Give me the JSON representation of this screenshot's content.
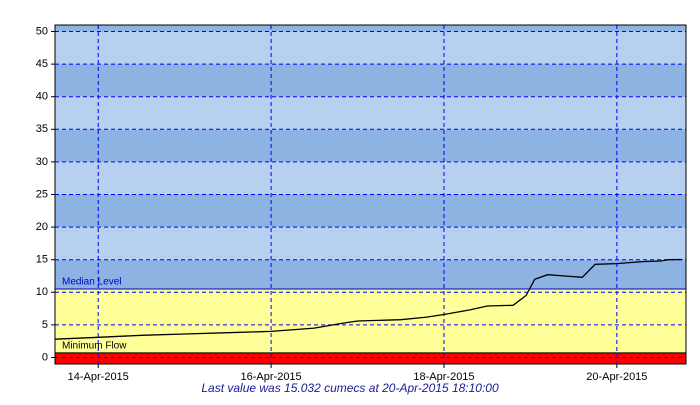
{
  "chart_data": {
    "type": "line",
    "x": [
      13.5,
      14.0,
      14.5,
      15.0,
      15.5,
      16.0,
      16.5,
      16.8,
      17.0,
      17.5,
      17.8,
      18.0,
      18.3,
      18.5,
      18.8,
      18.95,
      19.05,
      19.2,
      19.4,
      19.6,
      19.75,
      20.0,
      20.3,
      20.5,
      20.6,
      20.76
    ],
    "values": [
      2.8,
      3.1,
      3.4,
      3.6,
      3.8,
      4.0,
      4.5,
      5.2,
      5.6,
      5.8,
      6.2,
      6.6,
      7.3,
      7.9,
      8.0,
      9.5,
      12.0,
      12.7,
      12.5,
      12.3,
      14.3,
      14.4,
      14.7,
      14.8,
      15.0,
      15.032
    ],
    "color": "#000000",
    "xlim": [
      13.5,
      20.8
    ],
    "xticks": [
      {
        "value": 14,
        "label": "14-Apr-2015"
      },
      {
        "value": 16,
        "label": "16-Apr-2015"
      },
      {
        "value": 18,
        "label": "18-Apr-2015"
      },
      {
        "value": 20,
        "label": "20-Apr-2015"
      }
    ],
    "ylim": [
      -1,
      51
    ],
    "yticks": [
      0,
      5,
      10,
      15,
      20,
      25,
      30,
      35,
      40,
      45,
      50
    ],
    "grid": true,
    "reference_lines": [
      {
        "label": "Median Level",
        "value": 10.5,
        "color": "#0000cc",
        "fill_below": "#ffff99"
      },
      {
        "label": "Minimum Flow",
        "value": 0.7,
        "color": "#000000",
        "fill_below": "#ff0000"
      }
    ],
    "band_colors": [
      "#8db3e2",
      "#b7d0f0"
    ],
    "note": "Last value was 15.032 cumecs at 20-Apr-2015 18:10:00"
  }
}
